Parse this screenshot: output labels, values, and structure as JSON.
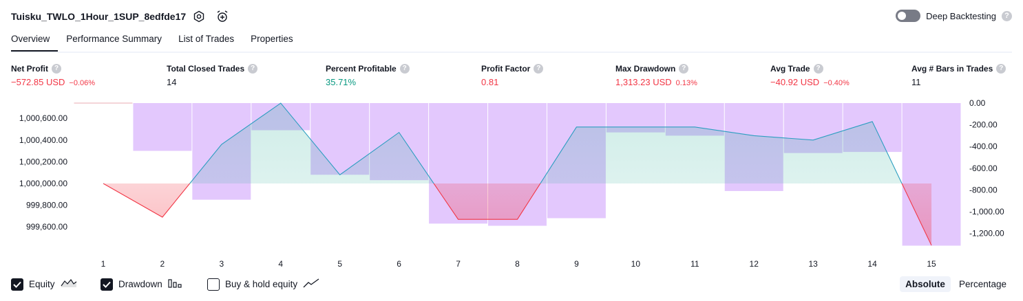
{
  "header": {
    "title": "Tuisku_TWLO_1Hour_1SUP_8edfde17",
    "deep_backtesting_label": "Deep Backtesting",
    "help_glyph": "?"
  },
  "tabs": [
    {
      "label": "Overview"
    },
    {
      "label": "Performance Summary"
    },
    {
      "label": "List of Trades"
    },
    {
      "label": "Properties"
    }
  ],
  "metrics": [
    {
      "label": "Net Profit",
      "value": "−572.85 USD",
      "sub": "−0.06%"
    },
    {
      "label": "Total Closed Trades",
      "value": "14",
      "sub": ""
    },
    {
      "label": "Percent Profitable",
      "value": "35.71%",
      "sub": ""
    },
    {
      "label": "Profit Factor",
      "value": "0.81",
      "sub": ""
    },
    {
      "label": "Max Drawdown",
      "value": "1,313.23 USD",
      "sub": "0.13%"
    },
    {
      "label": "Avg Trade",
      "value": "−40.92 USD",
      "sub": "−0.40%"
    },
    {
      "label": "Avg # Bars in Trades",
      "value": "11",
      "sub": ""
    }
  ],
  "colors": {
    "negative": "#f23645",
    "positive": "#089981",
    "drawdown_bar": "#e1c3fd",
    "equity_line_up": "#2b9ec0",
    "equity_line_down": "#f23645"
  },
  "chart_data": {
    "type": "line",
    "x": [
      1,
      2,
      3,
      4,
      5,
      6,
      7,
      8,
      9,
      10,
      11,
      12,
      13,
      14,
      15
    ],
    "x_tick_labels": [
      "1",
      "2",
      "3",
      "4",
      "5",
      "6",
      "7",
      "8",
      "9",
      "10",
      "11",
      "12",
      "13",
      "14",
      "15"
    ],
    "series": [
      {
        "name": "Equity",
        "axis": "left",
        "values": [
          1000000,
          999690,
          1000360,
          1000740,
          1000080,
          1000470,
          999670,
          999670,
          1000520,
          1000520,
          1000520,
          1000440,
          1000400,
          1000570,
          999430
        ]
      },
      {
        "name": "Drawdown",
        "axis": "right",
        "bars": [
          0,
          -440,
          -890,
          -250,
          -660,
          -710,
          -1110,
          -1130,
          -1060,
          -270,
          -300,
          -810,
          -460,
          -450,
          -1313.23
        ],
        "values": [
          0,
          -440,
          -890,
          -250,
          -660,
          -710,
          -1110,
          -1130,
          -1060,
          -270,
          -300,
          -810,
          -460,
          -450,
          -1313.23
        ]
      }
    ],
    "left_axis": {
      "ticks": [
        999600,
        999800,
        1000000,
        1000200,
        1000400,
        1000600
      ],
      "tick_labels": [
        "999,600.00",
        "999,800.00",
        "1,000,000.00",
        "1,000,200.00",
        "1,000,400.00",
        "1,000,600.00"
      ]
    },
    "right_axis": {
      "ticks": [
        0,
        -200,
        -400,
        -600,
        -800,
        -1000,
        -1200
      ],
      "tick_labels": [
        "0.00",
        "-200.00",
        "-400.00",
        "-600.00",
        "-800.00",
        "-1,000.00",
        "-1,200.00"
      ]
    },
    "baseline": 1000000,
    "legend_placement": "bottom-left"
  },
  "legend": {
    "equity_label": "Equity",
    "drawdown_label": "Drawdown",
    "buyhold_label": "Buy & hold equity",
    "equity_checked": true,
    "drawdown_checked": true,
    "buyhold_checked": false
  },
  "scale_toggle": {
    "absolute_label": "Absolute",
    "percentage_label": "Percentage",
    "selected": "Absolute"
  }
}
